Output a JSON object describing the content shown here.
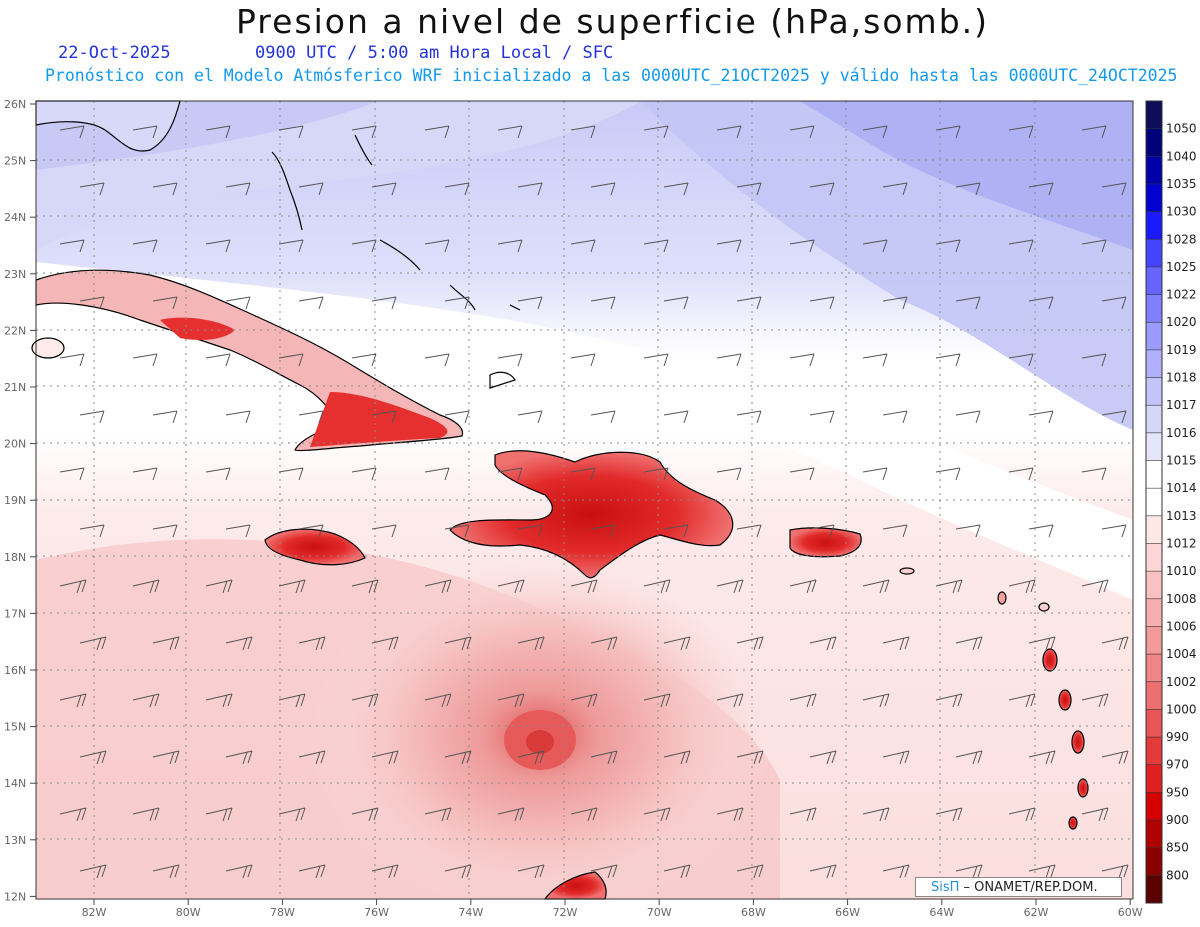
{
  "title": "Presion a nivel de superficie (hPa,somb.)",
  "date": "22-Oct-2025",
  "time_info": "0900 UTC / 5:00 am Hora Local / SFC",
  "model_info": "Pronóstico con el Modelo Atmósferico WRF inicializado a las 0000UTC_21OCT2025 y válido hasta las  0000UTC_24OCT2025",
  "credit": {
    "brand": "SisΠ",
    "org": " – ONAMET/REP.DOM."
  },
  "axes": {
    "lat_labels": [
      "26N",
      "25N",
      "24N",
      "23N",
      "22N",
      "21N",
      "20N",
      "19N",
      "18N",
      "17N",
      "16N",
      "15N",
      "14N",
      "13N",
      "12N"
    ],
    "lon_labels": [
      "82W",
      "80W",
      "78W",
      "76W",
      "74W",
      "72W",
      "70W",
      "68W",
      "66W",
      "64W",
      "62W",
      "60W"
    ]
  },
  "colorbar": {
    "levels": [
      "1050",
      "1040",
      "1035",
      "1030",
      "1028",
      "1025",
      "1022",
      "1020",
      "1019",
      "1018",
      "1017",
      "1016",
      "1015",
      "1014",
      "1013",
      "1012",
      "1010",
      "1008",
      "1006",
      "1004",
      "1002",
      "1000",
      "990",
      "970",
      "950",
      "900",
      "850",
      "800"
    ],
    "colors": [
      "#0d0d5a",
      "#00007a",
      "#0000a8",
      "#0000d0",
      "#1a1aff",
      "#4444ff",
      "#6666ff",
      "#8080ff",
      "#9a9aff",
      "#b0b0ff",
      "#c4c4fa",
      "#d6d6fa",
      "#e6e6fb",
      "#ffffff",
      "#ffffff",
      "#fde8e8",
      "#fcd6d6",
      "#f9c2c2",
      "#f6aeae",
      "#f29999",
      "#ef8585",
      "#ec7070",
      "#e85555",
      "#e33a3a",
      "#de2020",
      "#d40000",
      "#b00000",
      "#8a0000",
      "#5a0000"
    ]
  }
}
